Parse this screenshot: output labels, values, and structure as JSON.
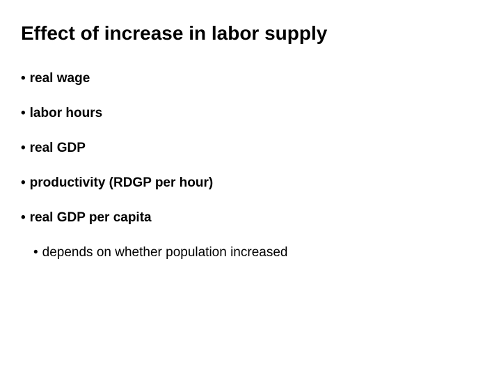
{
  "slide": {
    "title": "Effect of increase in labor supply",
    "title_fontsize": 28,
    "title_fontweight": "bold",
    "background_color": "#ffffff",
    "text_color": "#000000",
    "bullets": [
      {
        "text": "real wage",
        "fontweight": "bold"
      },
      {
        "text": "labor hours",
        "fontweight": "bold"
      },
      {
        "text": "real GDP",
        "fontweight": "bold"
      },
      {
        "text": "productivity (RDGP per hour)",
        "fontweight": "bold"
      },
      {
        "text": "real GDP per capita",
        "fontweight": "bold"
      }
    ],
    "sub_bullet": {
      "text": "depends on whether population increased",
      "fontweight": "normal"
    },
    "bullet_marker": "•",
    "bullet_fontsize": 19,
    "bullet_spacing": 28
  }
}
